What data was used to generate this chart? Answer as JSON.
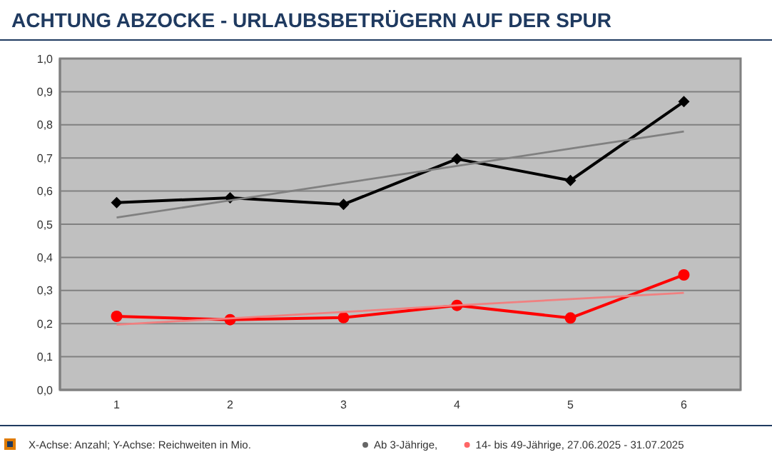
{
  "chart_data": {
    "type": "line",
    "title": "ACHTUNG ABZOCKE - URLAUBSBETRÜGERN AUF DER SPUR",
    "annotations": [
      "X-Achse: Anzahl; Y-Achse: Reichweiten in Mio."
    ],
    "x": [
      1,
      2,
      3,
      4,
      5,
      6
    ],
    "xlim": [
      0.5,
      6.5
    ],
    "xticks": [
      1,
      2,
      3,
      4,
      5,
      6
    ],
    "ylim": [
      0,
      1
    ],
    "yticks": [
      {
        "value": 0,
        "label": "0,0"
      },
      {
        "value": 0.1,
        "label": "0,1"
      },
      {
        "value": 0.2,
        "label": "0,2"
      },
      {
        "value": 0.3,
        "label": "0,3"
      },
      {
        "value": 0.4,
        "label": "0,4"
      },
      {
        "value": 0.5,
        "label": "0,5"
      },
      {
        "value": 0.6,
        "label": "0,6"
      },
      {
        "value": 0.7,
        "label": "0,7"
      },
      {
        "value": 0.8,
        "label": "0,8"
      },
      {
        "value": 0.9,
        "label": "0,9"
      },
      {
        "value": 1,
        "label": "1,0"
      }
    ],
    "grid": "y",
    "legend": "bottom right",
    "series": [
      {
        "name": "Ab 3-Jährige,",
        "color": "#000000",
        "marker": "diamond",
        "values": [
          0.565,
          0.58,
          0.56,
          0.697,
          0.632,
          0.87
        ]
      },
      {
        "name": "14- bis 49-Jährige, 27.06.2025 - 31.07.2025",
        "color": "#ff0000",
        "marker": "circle",
        "values": [
          0.222,
          0.212,
          0.218,
          0.255,
          0.217,
          0.347
        ]
      },
      {
        "type": "line",
        "color": "#808080",
        "marker": "none",
        "values": [
          0.52,
          0.572,
          0.624,
          0.676,
          0.728,
          0.78
        ]
      },
      {
        "type": "line",
        "color": "#f08080",
        "marker": "none",
        "values": [
          0.197,
          0.216,
          0.235,
          0.255,
          0.274,
          0.293
        ]
      }
    ]
  }
}
